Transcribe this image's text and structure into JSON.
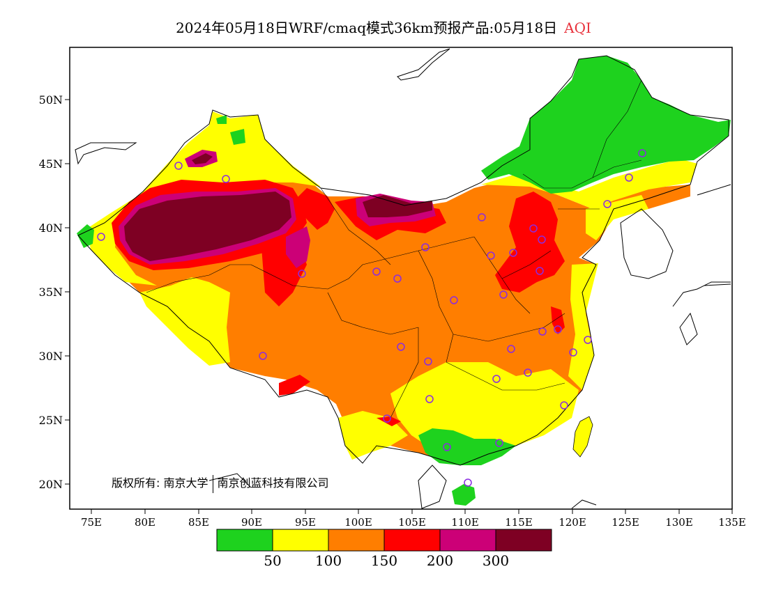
{
  "title": {
    "main": "2024年05月18日WRF/cmaq模式36km预报产品:05月18日",
    "indicator": "AQI"
  },
  "axes": {
    "lat_labels": [
      "50N",
      "45N",
      "40N",
      "35N",
      "30N",
      "25N",
      "20N"
    ],
    "lon_labels": [
      "75E",
      "80E",
      "85E",
      "90E",
      "95E",
      "100E",
      "105E",
      "110E",
      "115E",
      "120E",
      "125E",
      "130E",
      "135E"
    ]
  },
  "legend": {
    "colors": [
      "#1ed21e",
      "#ffff00",
      "#ff7e00",
      "#ff0000",
      "#cc0077",
      "#7e0023"
    ],
    "thresholds": [
      "50",
      "100",
      "150",
      "200",
      "300"
    ]
  },
  "copyright": {
    "prefix": "版权所有:",
    "owner1": "南京大学",
    "owner2": "南京创蓝科技有限公司"
  },
  "colors": {
    "station_marker": "#8a2be2"
  }
}
